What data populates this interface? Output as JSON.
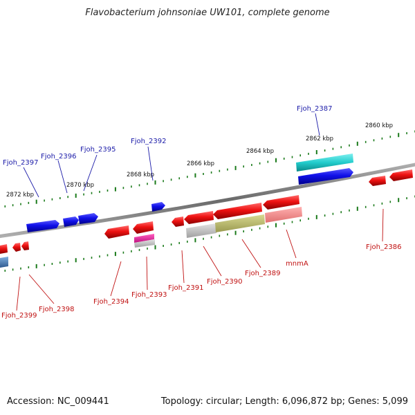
{
  "title": "Flavobacterium johnsoniae UW101, complete genome",
  "footer": {
    "accession": "Accession: NC_009441",
    "topology": "Topology: circular; Length: 6,096,872 bp; Genes: 5,099"
  },
  "scale_labels": [
    {
      "label": "2872 kbp",
      "pos": 2872
    },
    {
      "label": "2870 kbp",
      "pos": 2870
    },
    {
      "label": "2868 kbp",
      "pos": 2868
    },
    {
      "label": "2866 kbp",
      "pos": 2866
    },
    {
      "label": "2864 kbp",
      "pos": 2864
    },
    {
      "label": "2862 kbp",
      "pos": 2862
    },
    {
      "label": "2860 kbp",
      "pos": 2860
    }
  ],
  "colors": {
    "forward": "#1010e8",
    "reverse": "#ee1111",
    "backbone": "#808080",
    "label_forward": "#1a1aa8",
    "label_reverse": "#c01010",
    "ticks": "#1a7a1a"
  },
  "forward_genes": [
    {
      "name": "Fjoh_2397"
    },
    {
      "name": "Fjoh_2396"
    },
    {
      "name": "Fjoh_2395"
    },
    {
      "name": "Fjoh_2392"
    },
    {
      "name": "Fjoh_2387"
    }
  ],
  "reverse_genes": [
    {
      "name": "Fjoh_2399"
    },
    {
      "name": "Fjoh_2398"
    },
    {
      "name": "Fjoh_2394"
    },
    {
      "name": "Fjoh_2393"
    },
    {
      "name": "Fjoh_2391"
    },
    {
      "name": "Fjoh_2390"
    },
    {
      "name": "Fjoh_2389"
    },
    {
      "name": "mnmA"
    },
    {
      "name": "Fjoh_2386"
    }
  ]
}
